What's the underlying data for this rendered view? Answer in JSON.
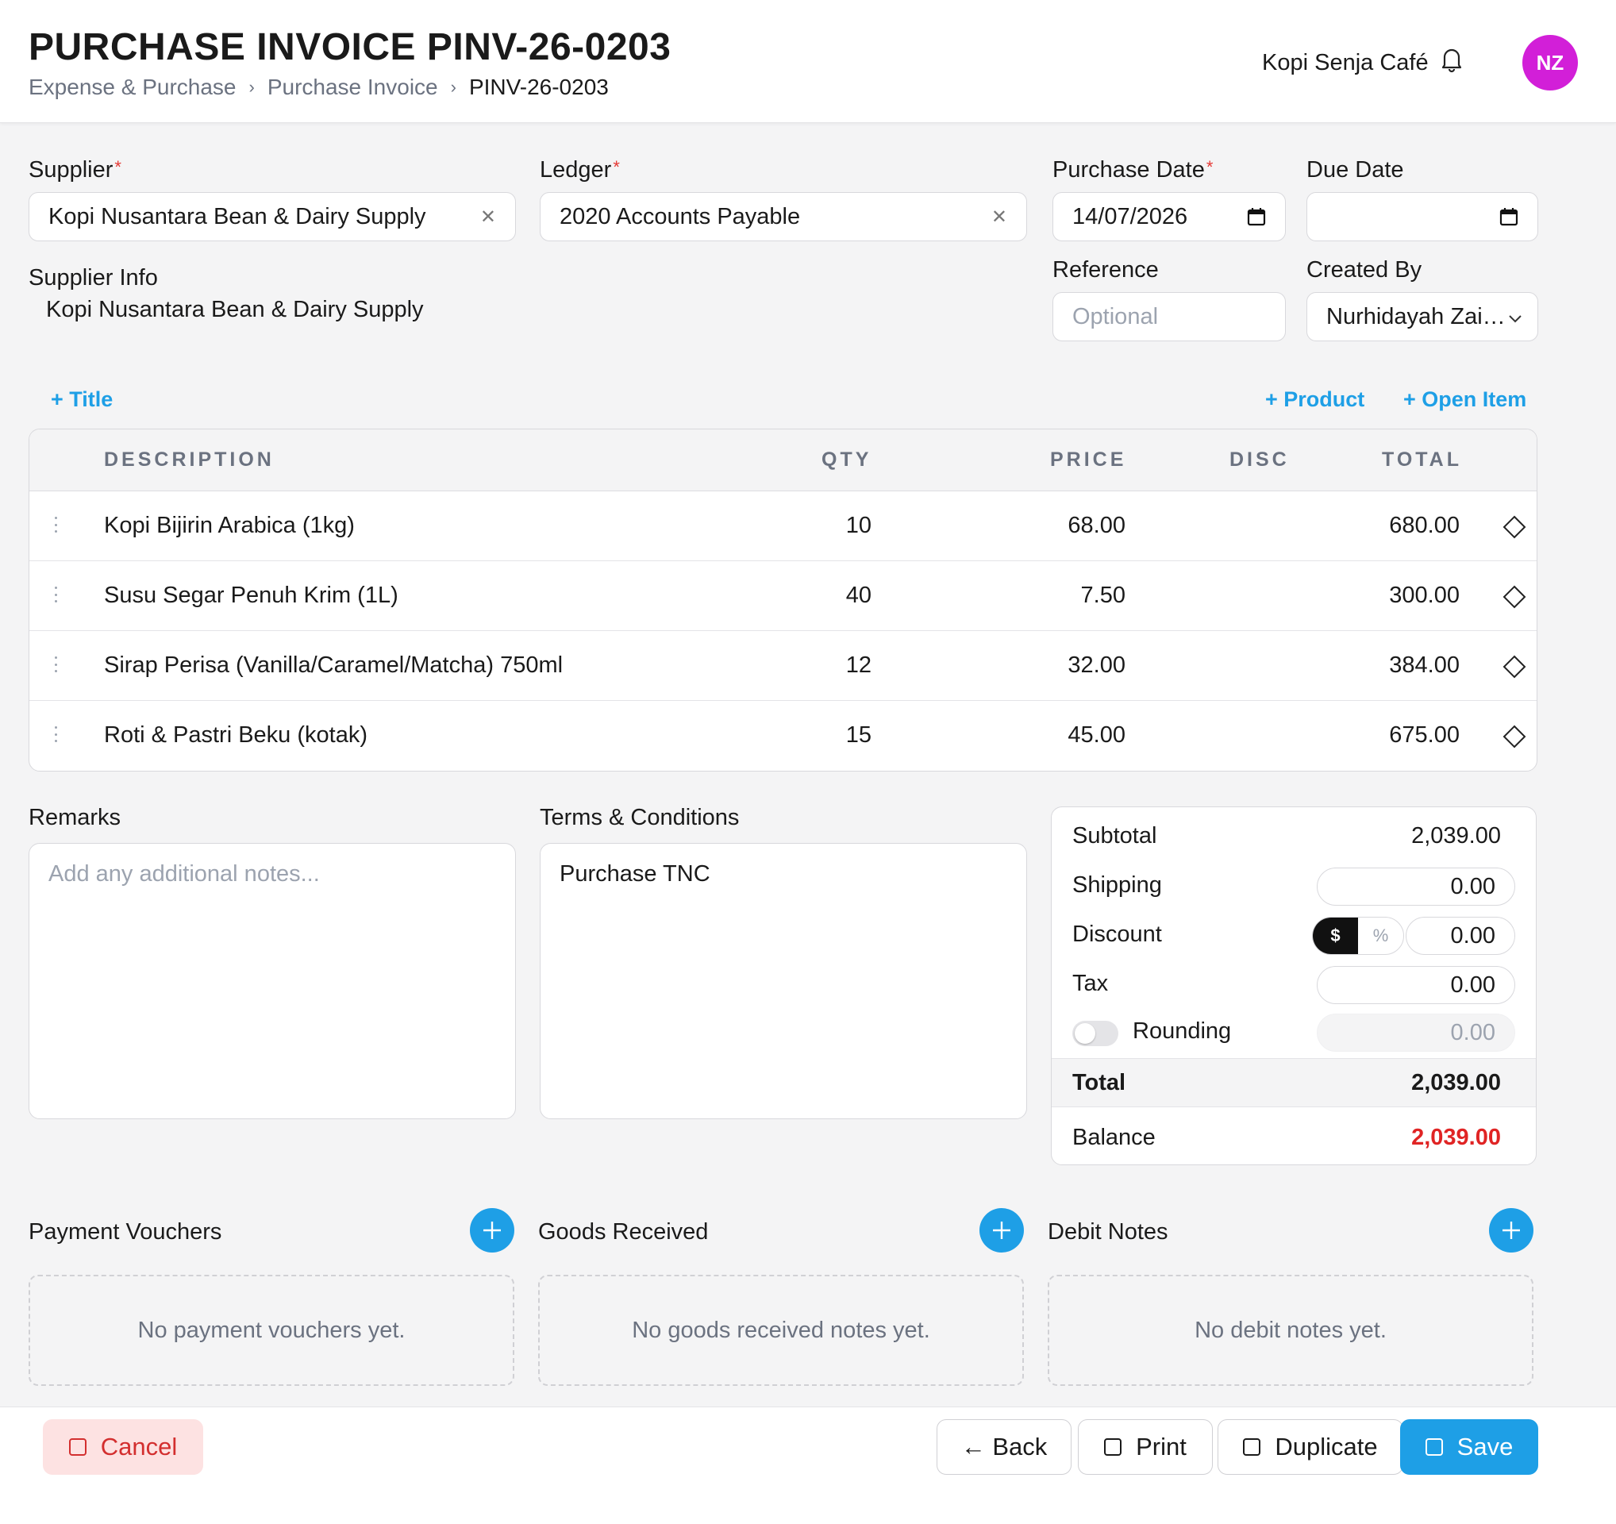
{
  "header": {
    "title": "PURCHASE INVOICE PINV-26-0203",
    "breadcrumb": [
      "Expense & Purchase",
      "Purchase Invoice",
      "PINV-26-0203"
    ],
    "company": "Kopi Senja Café",
    "avatar_initials": "NZ",
    "avatar_color": "#d21fd8"
  },
  "form": {
    "supplier_label": "Supplier",
    "supplier_value": "Kopi Nusantara Bean & Dairy Supply",
    "ledger_label": "Ledger",
    "ledger_value": "2020 Accounts Payable",
    "purchase_date_label": "Purchase Date",
    "purchase_date_value": "14/07/2026",
    "due_date_label": "Due Date",
    "due_date_value": "",
    "supplier_info_label": "Supplier Info",
    "supplier_info_value": "Kopi Nusantara Bean & Dairy Supply",
    "reference_label": "Reference",
    "reference_placeholder": "Optional",
    "created_by_label": "Created By",
    "created_by_value": "Nurhidayah Zai…",
    "required_mark": "*"
  },
  "actions": {
    "add_title": "+ Title",
    "add_product": "+ Product",
    "add_open_item": "+ Open Item"
  },
  "table": {
    "headers": [
      "DESCRIPTION",
      "QTY",
      "PRICE",
      "DISC",
      "TOTAL"
    ],
    "rows": [
      {
        "description": "Kopi Bijirin Arabica (1kg)",
        "qty": "10",
        "price": "68.00",
        "disc": "",
        "total": "680.00"
      },
      {
        "description": "Susu Segar Penuh Krim (1L)",
        "qty": "40",
        "price": "7.50",
        "disc": "",
        "total": "300.00"
      },
      {
        "description": "Sirap Perisa (Vanilla/Caramel/Matcha) 750ml",
        "qty": "12",
        "price": "32.00",
        "disc": "",
        "total": "384.00"
      },
      {
        "description": "Roti & Pastri Beku (kotak)",
        "qty": "15",
        "price": "45.00",
        "disc": "",
        "total": "675.00"
      }
    ]
  },
  "remarks": {
    "label": "Remarks",
    "placeholder": "Add any additional notes..."
  },
  "terms": {
    "label": "Terms & Conditions",
    "value": "Purchase TNC"
  },
  "totals": {
    "subtotal_label": "Subtotal",
    "subtotal_value": "2,039.00",
    "shipping_label": "Shipping",
    "shipping_value": "0.00",
    "discount_label": "Discount",
    "discount_mode_dollar": "$",
    "discount_mode_percent": "%",
    "discount_value": "0.00",
    "tax_label": "Tax",
    "tax_value": "0.00",
    "rounding_label": "Rounding",
    "rounding_value": "0.00",
    "total_label": "Total",
    "total_value": "2,039.00",
    "balance_label": "Balance",
    "balance_value": "2,039.00",
    "balance_color": "#e02424"
  },
  "related": {
    "payment_vouchers_title": "Payment Vouchers",
    "payment_vouchers_empty": "No payment vouchers yet.",
    "goods_received_title": "Goods Received",
    "goods_received_empty": "No goods received notes yet.",
    "debit_notes_title": "Debit Notes",
    "debit_notes_empty": "No debit notes yet."
  },
  "footer": {
    "cancel": "Cancel",
    "back": "← Back",
    "print": "Print",
    "duplicate": "Duplicate",
    "save": "Save"
  },
  "colors": {
    "accent": "#1e9fe6",
    "danger": "#d32f2f"
  }
}
